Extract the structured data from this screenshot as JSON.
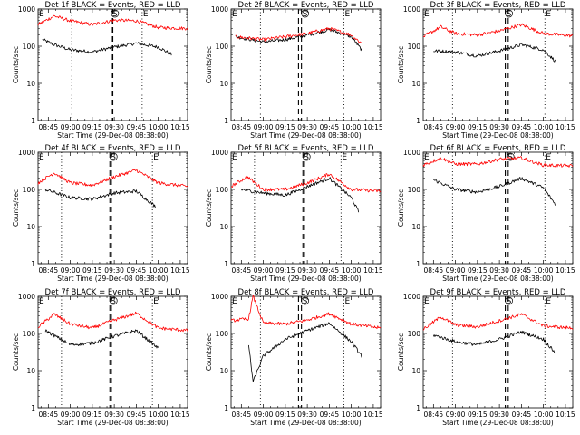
{
  "figure": {
    "x_tick_labels": [
      "08:45",
      "09:00",
      "09:15",
      "09:30",
      "09:45",
      "10:00",
      "10:15"
    ],
    "y_tick_labels": [
      "1",
      "10",
      "100",
      "1000"
    ],
    "xlabel": "Start Time (29-Dec-08 08:38:00)",
    "ylabel": "Counts/sec",
    "colors": {
      "events": "#000000",
      "lld": "#ff0000"
    }
  },
  "chart_data": [
    {
      "type": "line",
      "title": "Det 1f BLACK = Events, RED = LLD",
      "xlabel": "Start Time (29-Dec-08 08:38:00)",
      "ylabel": "Counts/sec",
      "xlim": [
        "08:38",
        "10:20"
      ],
      "ylim": [
        1,
        1000
      ],
      "yscale": "log",
      "grid": false,
      "markers": [
        {
          "x": "09:01",
          "style": "dotted"
        },
        {
          "x": "09:28",
          "style": "dashed"
        },
        {
          "x": "09:29",
          "style": "dashed"
        },
        {
          "x": "09:49",
          "style": "dotted"
        }
      ],
      "symbols": [
        {
          "x": "08:38",
          "text": "E"
        },
        {
          "x": "09:28",
          "text": "S"
        },
        {
          "x": "09:49",
          "text": "E"
        }
      ],
      "series": [
        {
          "name": "Events",
          "color": "#000000",
          "x": [
            "08:41",
            "08:49",
            "09:00",
            "09:15",
            "09:30",
            "09:45",
            "10:00",
            "10:09"
          ],
          "y": [
            150,
            110,
            80,
            70,
            95,
            120,
            95,
            60
          ]
        },
        {
          "name": "LLD",
          "color": "#ff0000",
          "x": [
            "08:38",
            "08:49",
            "09:00",
            "09:15",
            "09:30",
            "09:45",
            "10:00",
            "10:20"
          ],
          "y": [
            380,
            650,
            480,
            380,
            500,
            480,
            320,
            300
          ]
        }
      ]
    },
    {
      "type": "line",
      "title": "Det 2f BLACK = Events, RED = LLD",
      "xlabel": "Start Time (29-Dec-08 08:38:00)",
      "ylabel": "Counts/sec",
      "xlim": [
        "08:38",
        "10:20"
      ],
      "ylim": [
        1,
        1000
      ],
      "yscale": "log",
      "grid": false,
      "markers": [
        {
          "x": "08:58",
          "style": "dotted"
        },
        {
          "x": "09:24",
          "style": "dashed"
        },
        {
          "x": "09:26",
          "style": "dashed"
        },
        {
          "x": "09:55",
          "style": "dotted"
        }
      ],
      "symbols": [
        {
          "x": "08:38",
          "text": "E"
        },
        {
          "x": "09:26",
          "text": "S"
        },
        {
          "x": "09:55",
          "text": "E"
        }
      ],
      "series": [
        {
          "name": "Events",
          "color": "#000000",
          "x": [
            "08:41",
            "09:00",
            "09:15",
            "09:30",
            "09:45",
            "10:00",
            "10:07"
          ],
          "y": [
            180,
            130,
            150,
            200,
            280,
            180,
            80
          ]
        },
        {
          "name": "LLD",
          "color": "#ff0000",
          "x": [
            "08:41",
            "09:00",
            "09:15",
            "09:30",
            "09:45",
            "10:00",
            "10:07"
          ],
          "y": [
            180,
            150,
            180,
            220,
            300,
            200,
            120
          ]
        }
      ]
    },
    {
      "type": "line",
      "title": "Det 3f BLACK = Events, RED = LLD",
      "xlabel": "Start Time (29-Dec-08 08:38:00)",
      "ylabel": "Counts/sec",
      "xlim": [
        "08:38",
        "10:20"
      ],
      "ylim": [
        1,
        1000
      ],
      "yscale": "log",
      "grid": false,
      "markers": [
        {
          "x": "08:58",
          "style": "dotted"
        },
        {
          "x": "09:34",
          "style": "dashed"
        },
        {
          "x": "09:36",
          "style": "dashed"
        },
        {
          "x": "10:01",
          "style": "dotted"
        }
      ],
      "symbols": [
        {
          "x": "08:38",
          "text": "E"
        },
        {
          "x": "09:34",
          "text": "S"
        },
        {
          "x": "10:01",
          "text": "E"
        }
      ],
      "series": [
        {
          "name": "Events",
          "color": "#000000",
          "x": [
            "08:45",
            "09:00",
            "09:15",
            "09:30",
            "09:45",
            "10:00",
            "10:08"
          ],
          "y": [
            75,
            70,
            55,
            75,
            110,
            80,
            40
          ]
        },
        {
          "name": "LLD",
          "color": "#ff0000",
          "x": [
            "08:38",
            "08:50",
            "09:00",
            "09:15",
            "09:30",
            "09:45",
            "10:00",
            "10:20"
          ],
          "y": [
            180,
            330,
            220,
            200,
            260,
            380,
            220,
            190
          ]
        }
      ]
    },
    {
      "type": "line",
      "title": "Det 4f BLACK = Events, RED = LLD",
      "xlabel": "Start Time (29-Dec-08 08:38:00)",
      "ylabel": "Counts/sec",
      "xlim": [
        "08:38",
        "10:20"
      ],
      "ylim": [
        1,
        1000
      ],
      "yscale": "log",
      "grid": false,
      "markers": [
        {
          "x": "08:54",
          "style": "dotted"
        },
        {
          "x": "09:27",
          "style": "dashed"
        },
        {
          "x": "09:28",
          "style": "dashed"
        },
        {
          "x": "09:56",
          "style": "dotted"
        }
      ],
      "symbols": [
        {
          "x": "08:38",
          "text": "E"
        },
        {
          "x": "09:27",
          "text": "S"
        },
        {
          "x": "09:56",
          "text": "E"
        }
      ],
      "series": [
        {
          "name": "Events",
          "color": "#000000",
          "x": [
            "08:43",
            "09:00",
            "09:15",
            "09:30",
            "09:45",
            "09:58"
          ],
          "y": [
            100,
            60,
            55,
            80,
            90,
            35
          ]
        },
        {
          "name": "LLD",
          "color": "#ff0000",
          "x": [
            "08:38",
            "08:49",
            "09:00",
            "09:15",
            "09:30",
            "09:45",
            "10:00",
            "10:20"
          ],
          "y": [
            150,
            280,
            150,
            130,
            220,
            330,
            150,
            120
          ]
        }
      ]
    },
    {
      "type": "line",
      "title": "Det 5f BLACK = Events, RED = LLD",
      "xlabel": "Start Time (29-Dec-08 08:38:00)",
      "ylabel": "Counts/sec",
      "xlim": [
        "08:38",
        "10:20"
      ],
      "ylim": [
        1,
        1000
      ],
      "yscale": "log",
      "grid": false,
      "markers": [
        {
          "x": "08:54",
          "style": "dotted"
        },
        {
          "x": "09:27",
          "style": "dashed"
        },
        {
          "x": "09:28",
          "style": "dashed"
        },
        {
          "x": "09:53",
          "style": "dotted"
        }
      ],
      "symbols": [
        {
          "x": "08:38",
          "text": "E"
        },
        {
          "x": "09:27",
          "text": "S"
        },
        {
          "x": "09:53",
          "text": "E"
        }
      ],
      "series": [
        {
          "name": "Events",
          "color": "#000000",
          "x": [
            "08:45",
            "09:00",
            "09:15",
            "09:30",
            "09:45",
            "10:00",
            "10:05"
          ],
          "y": [
            100,
            80,
            70,
            120,
            200,
            60,
            25
          ]
        },
        {
          "name": "LLD",
          "color": "#ff0000",
          "x": [
            "08:38",
            "08:49",
            "09:00",
            "09:15",
            "09:30",
            "09:45",
            "10:00",
            "10:20"
          ],
          "y": [
            120,
            220,
            100,
            100,
            150,
            260,
            100,
            90
          ]
        }
      ]
    },
    {
      "type": "line",
      "title": "Det 6f BLACK = Events, RED = LLD",
      "xlabel": "Start Time (29-Dec-08 08:38:00)",
      "ylabel": "Counts/sec",
      "xlim": [
        "08:38",
        "10:20"
      ],
      "ylim": [
        1,
        1000
      ],
      "yscale": "log",
      "grid": false,
      "markers": [
        {
          "x": "08:58",
          "style": "dotted"
        },
        {
          "x": "09:34",
          "style": "dashed"
        },
        {
          "x": "09:36",
          "style": "dashed"
        },
        {
          "x": "10:01",
          "style": "dotted"
        }
      ],
      "symbols": [
        {
          "x": "08:38",
          "text": "E"
        },
        {
          "x": "09:35",
          "text": "S"
        },
        {
          "x": "10:01",
          "text": "E"
        }
      ],
      "series": [
        {
          "name": "Events",
          "color": "#000000",
          "x": [
            "08:45",
            "09:00",
            "09:15",
            "09:30",
            "09:45",
            "10:00",
            "10:08"
          ],
          "y": [
            180,
            100,
            85,
            120,
            200,
            110,
            40
          ]
        },
        {
          "name": "LLD",
          "color": "#ff0000",
          "x": [
            "08:38",
            "08:50",
            "09:00",
            "09:15",
            "09:30",
            "09:45",
            "10:00",
            "10:20"
          ],
          "y": [
            450,
            700,
            480,
            480,
            650,
            700,
            450,
            430
          ]
        }
      ]
    },
    {
      "type": "line",
      "title": "Det 7f BLACK = Events, RED = LLD",
      "xlabel": "Start Time (29-Dec-08 08:38:00)",
      "ylabel": "Counts/sec",
      "xlim": [
        "08:38",
        "10:20"
      ],
      "ylim": [
        1,
        1000
      ],
      "yscale": "log",
      "grid": false,
      "markers": [
        {
          "x": "08:54",
          "style": "dotted"
        },
        {
          "x": "09:27",
          "style": "dashed"
        },
        {
          "x": "09:28",
          "style": "dashed"
        },
        {
          "x": "09:56",
          "style": "dotted"
        }
      ],
      "symbols": [
        {
          "x": "08:38",
          "text": "E"
        },
        {
          "x": "09:27",
          "text": "S"
        },
        {
          "x": "09:56",
          "text": "E"
        }
      ],
      "series": [
        {
          "name": "Events",
          "color": "#000000",
          "x": [
            "08:43",
            "09:00",
            "09:15",
            "09:30",
            "09:45",
            "10:00"
          ],
          "y": [
            120,
            50,
            55,
            85,
            120,
            40
          ]
        },
        {
          "name": "LLD",
          "color": "#ff0000",
          "x": [
            "08:38",
            "08:49",
            "09:00",
            "09:15",
            "09:30",
            "09:45",
            "10:00",
            "10:20"
          ],
          "y": [
            150,
            330,
            180,
            140,
            230,
            350,
            140,
            120
          ]
        }
      ]
    },
    {
      "type": "line",
      "title": "Det 8f BLACK = Events, RED = LLD",
      "xlabel": "Start Time (29-Dec-08 08:38:00)",
      "ylabel": "Counts/sec",
      "xlim": [
        "08:38",
        "10:20"
      ],
      "ylim": [
        1,
        1000
      ],
      "yscale": "log",
      "grid": false,
      "markers": [
        {
          "x": "08:58",
          "style": "dotted"
        },
        {
          "x": "09:24",
          "style": "dashed"
        },
        {
          "x": "09:26",
          "style": "dashed"
        },
        {
          "x": "09:55",
          "style": "dotted"
        }
      ],
      "symbols": [
        {
          "x": "08:38",
          "text": "E"
        },
        {
          "x": "09:26",
          "text": "S"
        },
        {
          "x": "09:55",
          "text": "E"
        }
      ],
      "series": [
        {
          "name": "Events",
          "color": "#000000",
          "x": [
            "08:50",
            "08:53",
            "09:00",
            "09:15",
            "09:30",
            "09:45",
            "10:00",
            "10:07"
          ],
          "y": [
            50,
            5,
            25,
            70,
            120,
            190,
            60,
            25
          ]
        },
        {
          "name": "LLD",
          "color": "#ff0000",
          "x": [
            "08:38",
            "08:50",
            "08:53",
            "09:00",
            "09:15",
            "09:30",
            "09:45",
            "10:00",
            "10:20"
          ],
          "y": [
            220,
            250,
            1000,
            190,
            180,
            230,
            340,
            180,
            140
          ]
        }
      ]
    },
    {
      "type": "line",
      "title": "Det 9f BLACK = Events, RED = LLD",
      "xlabel": "Start Time (29-Dec-08 08:38:00)",
      "ylabel": "Counts/sec",
      "xlim": [
        "08:38",
        "10:20"
      ],
      "ylim": [
        1,
        1000
      ],
      "yscale": "log",
      "grid": false,
      "markers": [
        {
          "x": "08:58",
          "style": "dotted"
        },
        {
          "x": "09:34",
          "style": "dashed"
        },
        {
          "x": "09:36",
          "style": "dashed"
        },
        {
          "x": "10:01",
          "style": "dotted"
        }
      ],
      "symbols": [
        {
          "x": "08:38",
          "text": "E"
        },
        {
          "x": "09:34",
          "text": "S"
        },
        {
          "x": "10:01",
          "text": "E"
        }
      ],
      "series": [
        {
          "name": "Events",
          "color": "#000000",
          "x": [
            "08:45",
            "09:00",
            "09:15",
            "09:30",
            "09:45",
            "10:00",
            "10:08"
          ],
          "y": [
            90,
            60,
            50,
            70,
            110,
            70,
            30
          ]
        },
        {
          "name": "LLD",
          "color": "#ff0000",
          "x": [
            "08:38",
            "08:50",
            "09:00",
            "09:15",
            "09:30",
            "09:45",
            "10:00",
            "10:20"
          ],
          "y": [
            130,
            280,
            170,
            150,
            220,
            330,
            160,
            140
          ]
        }
      ]
    }
  ]
}
